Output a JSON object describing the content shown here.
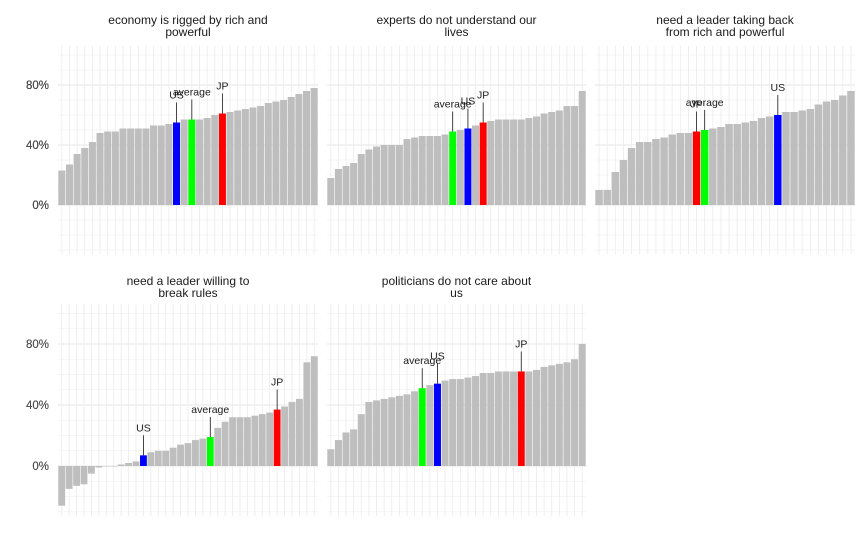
{
  "chart_data": {
    "type": "bar",
    "y_ticks": [
      "0%",
      "40%",
      "80%"
    ],
    "ylim": [
      -0.33,
      1.06
    ],
    "highlight_colors": {
      "US": "#0000ff",
      "JP": "#ff0000",
      "average": "#00ff00",
      "other": "#bebebe"
    },
    "panels": [
      {
        "title": "economy is rigged by rich and\npowerful",
        "values": [
          0.23,
          0.27,
          0.34,
          0.38,
          0.42,
          0.48,
          0.49,
          0.49,
          0.51,
          0.51,
          0.51,
          0.51,
          0.53,
          0.53,
          0.54,
          0.55,
          0.57,
          0.57,
          0.57,
          0.58,
          0.6,
          0.61,
          0.62,
          0.63,
          0.64,
          0.65,
          0.66,
          0.68,
          0.69,
          0.7,
          0.72,
          0.74,
          0.76,
          0.78
        ],
        "highlights": [
          {
            "label": "US",
            "index": 15,
            "series": "US"
          },
          {
            "label": "average",
            "index": 17,
            "series": "average"
          },
          {
            "label": "JP",
            "index": 21,
            "series": "JP"
          }
        ]
      },
      {
        "title": "experts do not understand our\nlives",
        "values": [
          0.18,
          0.24,
          0.26,
          0.28,
          0.34,
          0.37,
          0.39,
          0.4,
          0.4,
          0.4,
          0.44,
          0.45,
          0.46,
          0.46,
          0.46,
          0.47,
          0.49,
          0.5,
          0.51,
          0.53,
          0.55,
          0.56,
          0.57,
          0.57,
          0.57,
          0.57,
          0.58,
          0.59,
          0.61,
          0.62,
          0.63,
          0.66,
          0.66,
          0.76
        ],
        "highlights": [
          {
            "label": "average",
            "index": 16,
            "series": "average"
          },
          {
            "label": "US",
            "index": 18,
            "series": "US"
          },
          {
            "label": "JP",
            "index": 20,
            "series": "JP"
          }
        ]
      },
      {
        "title": "need a leader taking back\nfrom rich and powerful",
        "values": [
          0.1,
          0.1,
          0.22,
          0.3,
          0.38,
          0.42,
          0.42,
          0.44,
          0.45,
          0.47,
          0.48,
          0.48,
          0.49,
          0.5,
          0.51,
          0.52,
          0.54,
          0.54,
          0.55,
          0.56,
          0.58,
          0.59,
          0.6,
          0.62,
          0.62,
          0.63,
          0.64,
          0.67,
          0.69,
          0.7,
          0.73,
          0.76
        ],
        "highlights": [
          {
            "label": "JP",
            "index": 12,
            "series": "JP"
          },
          {
            "label": "average",
            "index": 13,
            "series": "average"
          },
          {
            "label": "US",
            "index": 22,
            "series": "US"
          }
        ]
      },
      {
        "title": "need a leader willing to\nbreak rules",
        "values": [
          -0.26,
          -0.15,
          -0.13,
          -0.12,
          -0.05,
          -0.01,
          0.0,
          0.0,
          0.01,
          0.02,
          0.03,
          0.07,
          0.09,
          0.1,
          0.1,
          0.12,
          0.14,
          0.15,
          0.17,
          0.18,
          0.19,
          0.25,
          0.29,
          0.32,
          0.32,
          0.32,
          0.33,
          0.34,
          0.35,
          0.37,
          0.39,
          0.42,
          0.44,
          0.68,
          0.72
        ],
        "highlights": [
          {
            "label": "US",
            "index": 11,
            "series": "US"
          },
          {
            "label": "average",
            "index": 20,
            "series": "average"
          },
          {
            "label": "JP",
            "index": 29,
            "series": "JP"
          }
        ]
      },
      {
        "title": "politicians do not care about\nus",
        "values": [
          0.11,
          0.17,
          0.22,
          0.24,
          0.34,
          0.42,
          0.43,
          0.44,
          0.45,
          0.46,
          0.47,
          0.49,
          0.51,
          0.53,
          0.54,
          0.56,
          0.57,
          0.57,
          0.58,
          0.59,
          0.61,
          0.61,
          0.62,
          0.62,
          0.62,
          0.62,
          0.62,
          0.63,
          0.65,
          0.66,
          0.67,
          0.68,
          0.7,
          0.8
        ],
        "highlights": [
          {
            "label": "average",
            "index": 12,
            "series": "average"
          },
          {
            "label": "US",
            "index": 14,
            "series": "US"
          },
          {
            "label": "JP",
            "index": 25,
            "series": "JP"
          }
        ]
      }
    ]
  }
}
